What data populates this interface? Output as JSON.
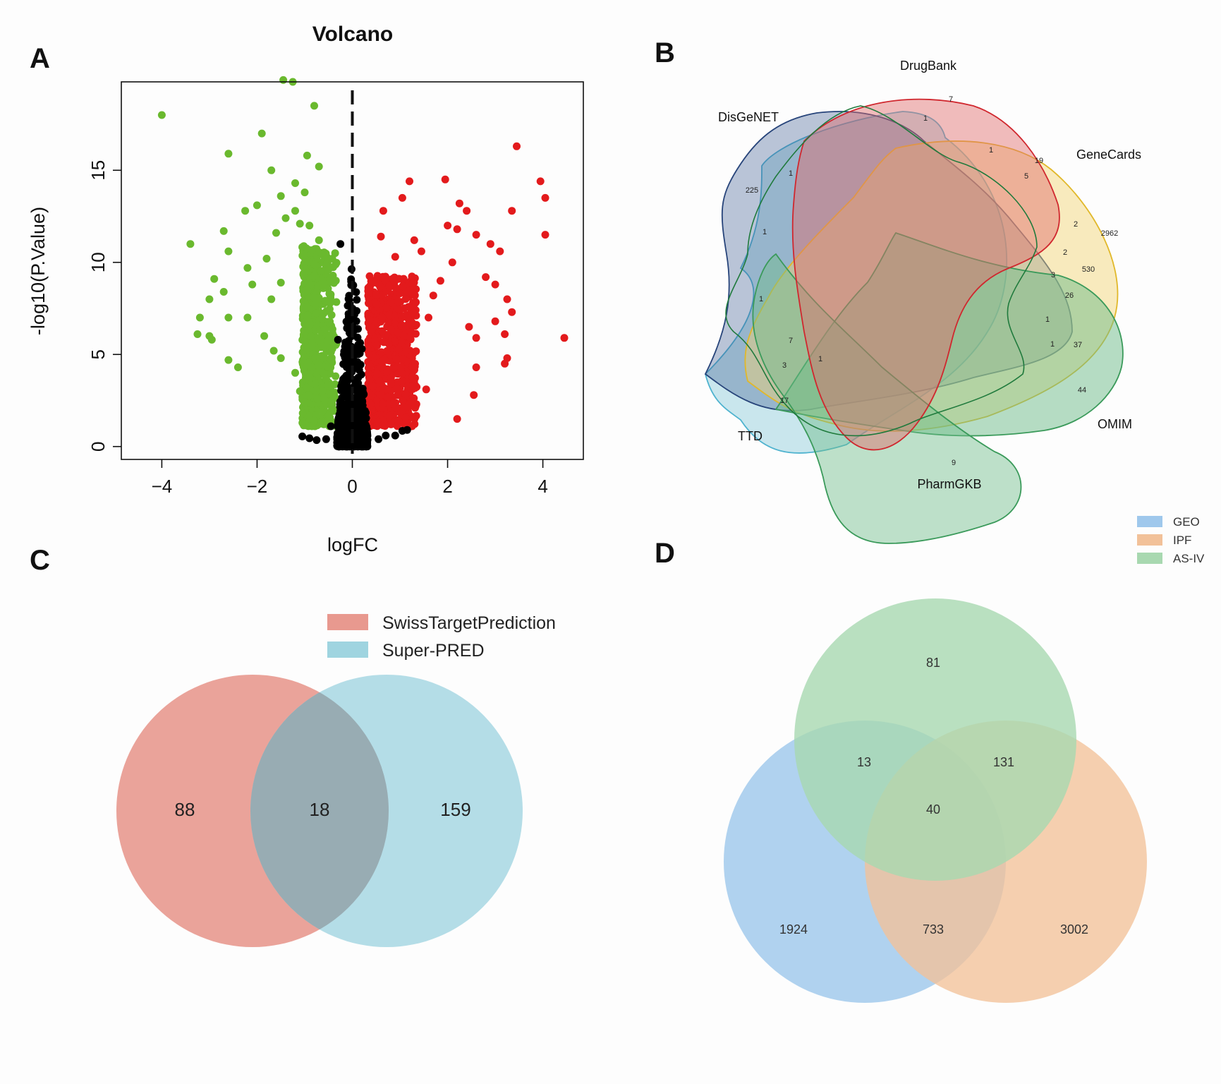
{
  "panels": {
    "A": "A",
    "B": "B",
    "C": "C",
    "D": "D"
  },
  "chart_data": [
    {
      "type": "scatter",
      "title": "Volcano",
      "xlabel": "logFC",
      "ylabel": "-log10(P.Value)",
      "xlim": [
        -4.85,
        4.85
      ],
      "ylim": [
        -0.7,
        19.8
      ],
      "xticks": [
        -4,
        -2,
        0,
        2,
        4
      ],
      "yticks": [
        0,
        5,
        10,
        15
      ],
      "threshold_line_x": 0,
      "grid": false,
      "colors": {
        "down": "#6ab92e",
        "up": "#e31a1c",
        "ns": "#000000"
      },
      "series": [
        {
          "name": "down",
          "points": [
            [
              -4.0,
              18.0
            ],
            [
              -1.9,
              17.0
            ],
            [
              -1.45,
              19.9
            ],
            [
              -1.25,
              19.8
            ],
            [
              -0.8,
              18.5
            ],
            [
              -2.6,
              15.9
            ],
            [
              -1.7,
              15.0
            ],
            [
              -0.95,
              15.8
            ],
            [
              -0.7,
              15.2
            ],
            [
              -3.4,
              11.0
            ],
            [
              -2.7,
              11.7
            ],
            [
              -2.6,
              10.6
            ],
            [
              -2.25,
              12.8
            ],
            [
              -2.0,
              13.1
            ],
            [
              -1.5,
              13.6
            ],
            [
              -1.2,
              14.3
            ],
            [
              -1.0,
              13.8
            ],
            [
              -2.9,
              9.1
            ],
            [
              -3.0,
              8.0
            ],
            [
              -2.7,
              8.4
            ],
            [
              -2.2,
              9.7
            ],
            [
              -3.2,
              7.0
            ],
            [
              -2.6,
              7.0
            ],
            [
              -3.25,
              6.1
            ],
            [
              -3.0,
              6.0
            ],
            [
              -2.95,
              5.8
            ],
            [
              -2.6,
              4.7
            ],
            [
              -2.4,
              4.3
            ],
            [
              -2.2,
              7.0
            ],
            [
              -2.1,
              8.8
            ],
            [
              -1.8,
              10.2
            ],
            [
              -1.6,
              11.6
            ],
            [
              -1.4,
              12.4
            ],
            [
              -1.2,
              12.8
            ],
            [
              -1.1,
              12.1
            ],
            [
              -0.9,
              12.0
            ],
            [
              -0.7,
              11.2
            ],
            [
              -1.7,
              8.0
            ],
            [
              -1.5,
              8.9
            ],
            [
              -1.85,
              6.0
            ],
            [
              -1.65,
              5.2
            ],
            [
              -1.5,
              4.8
            ],
            [
              -1.2,
              4.0
            ],
            [
              -1.1,
              3.0
            ],
            [
              -1.0,
              2.4
            ]
          ],
          "cloud": {
            "x_range": [
              -1.05,
              -0.33
            ],
            "y_range": [
              1.1,
              10.9
            ]
          }
        },
        {
          "name": "up",
          "points": [
            [
              3.45,
              16.3
            ],
            [
              1.95,
              14.5
            ],
            [
              1.2,
              14.4
            ],
            [
              3.95,
              14.4
            ],
            [
              4.05,
              13.5
            ],
            [
              1.05,
              13.5
            ],
            [
              0.65,
              12.8
            ],
            [
              2.25,
              13.2
            ],
            [
              2.4,
              12.8
            ],
            [
              3.35,
              12.8
            ],
            [
              2.0,
              12.0
            ],
            [
              2.2,
              11.8
            ],
            [
              2.6,
              11.5
            ],
            [
              2.9,
              11.0
            ],
            [
              3.1,
              10.6
            ],
            [
              2.8,
              9.2
            ],
            [
              3.0,
              8.8
            ],
            [
              3.25,
              8.0
            ],
            [
              3.35,
              7.3
            ],
            [
              3.0,
              6.8
            ],
            [
              2.45,
              6.5
            ],
            [
              2.6,
              5.9
            ],
            [
              3.2,
              6.1
            ],
            [
              3.25,
              4.8
            ],
            [
              3.2,
              4.5
            ],
            [
              2.6,
              4.3
            ],
            [
              2.55,
              2.8
            ],
            [
              4.05,
              11.5
            ],
            [
              4.45,
              5.9
            ],
            [
              2.2,
              1.5
            ],
            [
              1.55,
              3.1
            ],
            [
              1.6,
              7.0
            ],
            [
              1.7,
              8.2
            ],
            [
              1.85,
              9.0
            ],
            [
              2.1,
              10.0
            ],
            [
              1.45,
              10.6
            ],
            [
              1.3,
              11.2
            ],
            [
              0.9,
              10.3
            ],
            [
              0.6,
              11.4
            ],
            [
              0.5,
              8.9
            ]
          ],
          "cloud": {
            "x_range": [
              0.33,
              1.35
            ],
            "y_range": [
              1.1,
              9.3
            ]
          }
        },
        {
          "name": "ns",
          "points": [
            [
              -0.45,
              1.1
            ],
            [
              -0.55,
              0.4
            ],
            [
              -0.75,
              0.35
            ],
            [
              -0.9,
              0.45
            ],
            [
              -1.05,
              0.55
            ],
            [
              0.55,
              0.4
            ],
            [
              0.7,
              0.6
            ],
            [
              0.9,
              0.6
            ],
            [
              1.05,
              0.85
            ],
            [
              1.15,
              0.9
            ],
            [
              -0.25,
              11.0
            ],
            [
              -0.3,
              5.8
            ],
            [
              0.2,
              5.3
            ]
          ],
          "cloud": {
            "x_range": [
              -0.32,
              0.32
            ],
            "y_range": [
              0.0,
              11.0
            ]
          }
        }
      ]
    },
    {
      "type": "venn",
      "sets": [
        "DrugBank",
        "DisGeNET",
        "GeneCards",
        "TTD",
        "OMIM",
        "PharmGKB"
      ],
      "region_counts": [
        "7",
        "1",
        "1",
        "19",
        "5",
        "225",
        "1",
        "1",
        "1",
        "2",
        "2962",
        "2",
        "530",
        "3",
        "26",
        "1",
        "1",
        "37",
        "44",
        "7",
        "3",
        "1",
        "17",
        "9"
      ]
    },
    {
      "type": "venn",
      "sets": [
        "SwissTargetPrediction",
        "Super-PRED"
      ],
      "colors": {
        "SwissTargetPrediction": "#e8998f",
        "Super-PRED": "#9fd4e0"
      },
      "regions": {
        "SwissTargetPrediction_only": "88",
        "both": "18",
        "Super-PRED_only": "159"
      }
    },
    {
      "type": "venn",
      "sets": [
        "GEO",
        "IPF",
        "AS-IV"
      ],
      "colors": {
        "GEO": "#9fc8ec",
        "IPF": "#f2c199",
        "AS-IV": "#a8d8b0"
      },
      "regions": {
        "AS-IV_only": "81",
        "GEO_AS-IV": "13",
        "IPF_AS-IV": "131",
        "all": "40",
        "GEO_only": "1924",
        "GEO_IPF": "733",
        "IPF_only": "3002"
      }
    }
  ]
}
